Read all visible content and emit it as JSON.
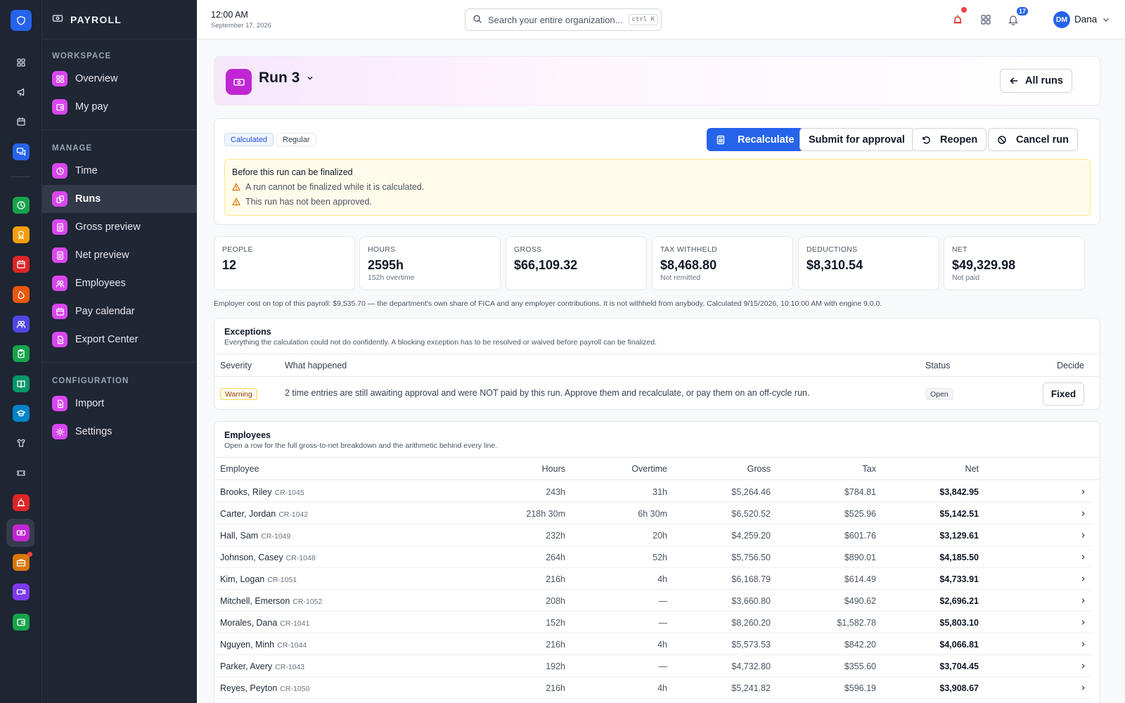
{
  "app": {
    "title": "PAYROLL"
  },
  "colors": {
    "accent": "#2563eb",
    "brand": "#c026d3",
    "sidebar": "#1f2634",
    "warning": "#f59e0b"
  },
  "rail": {
    "items": [
      {
        "icon": "shield-icon",
        "color": "#2563eb"
      },
      {
        "icon": "grid-icon",
        "color": "transparent"
      },
      {
        "icon": "megaphone-icon",
        "color": "transparent"
      },
      {
        "icon": "calendar-icon",
        "color": "transparent"
      },
      {
        "icon": "chat-icon",
        "color": "#2563eb"
      },
      {
        "icon": "clock-icon",
        "color": "#16a34a"
      },
      {
        "icon": "badge-icon",
        "color": "#f59e0b"
      },
      {
        "icon": "calendar-icon",
        "color": "#dc2626"
      },
      {
        "icon": "flame-icon",
        "color": "#ea580c"
      },
      {
        "icon": "people-icon",
        "color": "#4f46e5"
      },
      {
        "icon": "clipboard-icon",
        "color": "#16a34a"
      },
      {
        "icon": "book-icon",
        "color": "#059669"
      },
      {
        "icon": "graduation-icon",
        "color": "#0284c7"
      },
      {
        "icon": "shirt-icon",
        "color": "transparent"
      },
      {
        "icon": "ticket-icon",
        "color": "transparent"
      },
      {
        "icon": "alarm-icon",
        "color": "#dc2626"
      },
      {
        "icon": "payroll-icon",
        "color": "#c026d3"
      },
      {
        "icon": "briefcase-icon",
        "color": "#d97706"
      },
      {
        "icon": "video-icon",
        "color": "#7c3aed"
      },
      {
        "icon": "wallet-icon",
        "color": "#16a34a"
      }
    ]
  },
  "sidebar": {
    "sections": [
      {
        "label": "WORKSPACE",
        "items": [
          {
            "label": "Overview",
            "icon": "grid-icon"
          },
          {
            "label": "My pay",
            "icon": "wallet-icon"
          }
        ]
      },
      {
        "label": "MANAGE",
        "items": [
          {
            "label": "Time",
            "icon": "clock-icon"
          },
          {
            "label": "Runs",
            "icon": "runs-icon",
            "active": true
          },
          {
            "label": "Gross preview",
            "icon": "doc-icon"
          },
          {
            "label": "Net preview",
            "icon": "doc-icon"
          },
          {
            "label": "Employees",
            "icon": "people-icon"
          },
          {
            "label": "Pay calendar",
            "icon": "calendar-icon"
          },
          {
            "label": "Export Center",
            "icon": "export-icon"
          }
        ]
      },
      {
        "label": "CONFIGURATION",
        "items": [
          {
            "label": "Import",
            "icon": "import-icon"
          },
          {
            "label": "Settings",
            "icon": "gear-icon"
          }
        ]
      }
    ]
  },
  "topbar": {
    "time": "12:00 AM",
    "date": "September 17, 2026",
    "search_placeholder": "Search your entire organization...",
    "search_shortcut": "ctrl K",
    "notification_count": "17",
    "user_initials": "DM",
    "user_name": "Dana"
  },
  "run": {
    "title": "Run 3",
    "all_runs_label": "All runs",
    "tags": [
      "Calculated",
      "Regular"
    ],
    "actions": {
      "recalculate": "Recalculate",
      "submit": "Submit for approval",
      "reopen": "Reopen",
      "cancel": "Cancel run"
    },
    "alert": {
      "title": "Before this run can be finalized",
      "lines": [
        "A run cannot be finalized while it is calculated.",
        "This run has not been approved."
      ]
    }
  },
  "stats": [
    {
      "label": "PEOPLE",
      "value": "12",
      "sub": ""
    },
    {
      "label": "HOURS",
      "value": "2595h",
      "sub": "152h overtime"
    },
    {
      "label": "GROSS",
      "value": "$66,109.32",
      "sub": ""
    },
    {
      "label": "TAX WITHHELD",
      "value": "$8,468.80",
      "sub": "Not remitted"
    },
    {
      "label": "DEDUCTIONS",
      "value": "$8,310.54",
      "sub": ""
    },
    {
      "label": "NET",
      "value": "$49,329.98",
      "sub": "Not paid"
    }
  ],
  "employer_note": "Employer cost on top of this payroll: $9,535.70 — the department's own share of FICA and any employer contributions. It is not withheld from anybody. Calculated 9/15/2026, 10:10:00 AM with engine 9.0.0.",
  "exceptions": {
    "title": "Exceptions",
    "subtitle": "Everything the calculation could not do confidently. A blocking exception has to be resolved or waived before payroll can be finalized.",
    "columns": {
      "severity": "Severity",
      "what": "What happened",
      "status": "Status",
      "decide": "Decide"
    },
    "rows": [
      {
        "severity": "Warning",
        "what": "2 time entries are still awaiting approval and were NOT paid by this run. Approve them and recalculate, or pay them on an off-cycle run.",
        "status": "Open",
        "action": "Fixed"
      }
    ]
  },
  "employees": {
    "title": "Employees",
    "subtitle": "Open a row for the full gross-to-net breakdown and the arithmetic behind every line.",
    "columns": {
      "employee": "Employee",
      "hours": "Hours",
      "overtime": "Overtime",
      "gross": "Gross",
      "tax": "Tax",
      "net": "Net"
    },
    "rows": [
      {
        "name": "Brooks, Riley",
        "id": "CR-1045",
        "hours": "243h",
        "overtime": "31h",
        "gross": "$5,264.46",
        "tax": "$784.81",
        "net": "$3,842.95"
      },
      {
        "name": "Carter, Jordan",
        "id": "CR-1042",
        "hours": "218h 30m",
        "overtime": "6h 30m",
        "gross": "$6,520.52",
        "tax": "$525.96",
        "net": "$5,142.51"
      },
      {
        "name": "Hall, Sam",
        "id": "CR-1049",
        "hours": "232h",
        "overtime": "20h",
        "gross": "$4,259.20",
        "tax": "$601.76",
        "net": "$3,129.61"
      },
      {
        "name": "Johnson, Casey",
        "id": "CR-1048",
        "hours": "264h",
        "overtime": "52h",
        "gross": "$5,756.50",
        "tax": "$890.01",
        "net": "$4,185.50"
      },
      {
        "name": "Kim, Logan",
        "id": "CR-1051",
        "hours": "216h",
        "overtime": "4h",
        "gross": "$6,168.79",
        "tax": "$614.49",
        "net": "$4,733.91"
      },
      {
        "name": "Mitchell, Emerson",
        "id": "CR-1052",
        "hours": "208h",
        "overtime": "—",
        "gross": "$3,660.80",
        "tax": "$490.62",
        "net": "$2,696.21"
      },
      {
        "name": "Morales, Dana",
        "id": "CR-1041",
        "hours": "152h",
        "overtime": "—",
        "gross": "$8,260.20",
        "tax": "$1,582.78",
        "net": "$5,803.10"
      },
      {
        "name": "Nguyen, Minh",
        "id": "CR-1044",
        "hours": "216h",
        "overtime": "4h",
        "gross": "$5,573.53",
        "tax": "$842.20",
        "net": "$4,066.81"
      },
      {
        "name": "Parker, Avery",
        "id": "CR-1043",
        "hours": "192h",
        "overtime": "—",
        "gross": "$4,732.80",
        "tax": "$355.60",
        "net": "$3,704.45"
      },
      {
        "name": "Reyes, Peyton",
        "id": "CR-1050",
        "hours": "216h",
        "overtime": "4h",
        "gross": "$5,241.82",
        "tax": "$596.19",
        "net": "$3,908.67"
      }
    ]
  }
}
